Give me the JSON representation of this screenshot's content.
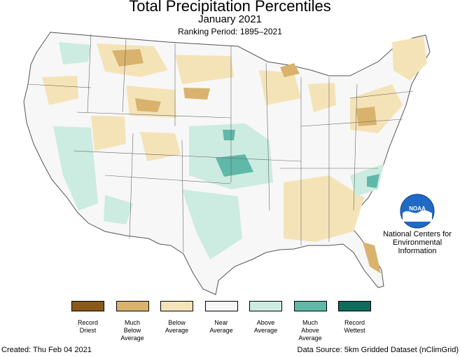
{
  "header": {
    "title": "Total Precipitation Percentiles",
    "subtitle": "January 2021",
    "ranking": "Ranking Period: 1895–2021"
  },
  "organization": {
    "logo_text": "NOAA",
    "lines": [
      "National Centers for",
      "Environmental",
      "Information"
    ]
  },
  "legend": [
    {
      "lines": [
        "Record",
        "Driest"
      ],
      "color": "#8a5a1a"
    },
    {
      "lines": [
        "Much",
        "Below",
        "Average"
      ],
      "color": "#d9b36d"
    },
    {
      "lines": [
        "Below",
        "Average"
      ],
      "color": "#f5e3b8"
    },
    {
      "lines": [
        "Near",
        "Average"
      ],
      "color": "#f7f7f7"
    },
    {
      "lines": [
        "Above",
        "Average"
      ],
      "color": "#ccebe1"
    },
    {
      "lines": [
        "Much",
        "Above",
        "Average"
      ],
      "color": "#5fb8a8"
    },
    {
      "lines": [
        "Record",
        "Wettest"
      ],
      "color": "#0f6b5c"
    }
  ],
  "footer": {
    "created": "Created: Thu Feb 04 2021",
    "source": "Data Source: 5km Gridded Dataset (nClimGrid)"
  }
}
